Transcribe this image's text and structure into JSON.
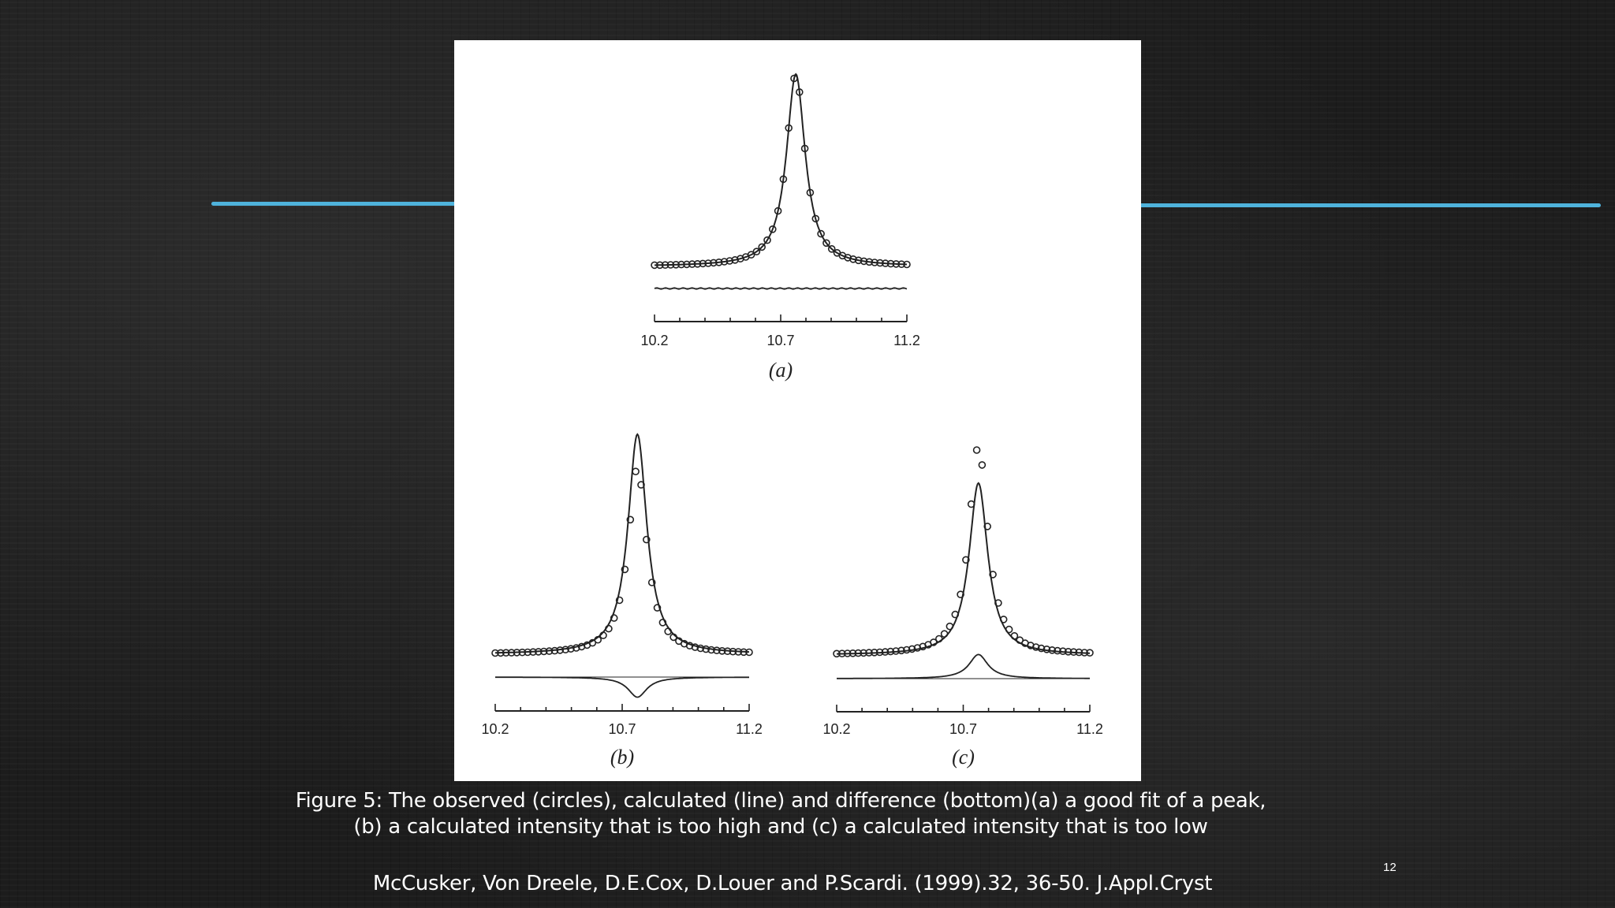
{
  "slide": {
    "accent_color": "#4fb3dc",
    "caption_line1": "Figure 5: The observed (circles), calculated (line) and difference (bottom)(a) a good fit of a peak,",
    "caption_line2": "(b) a calculated intensity that is too high and (c) a calculated intensity that is too low",
    "citation": "McCusker, Von Dreele, D.E.Cox, D.Louer and P.Scardi. (1999).32, 36-50. J.Appl.Cryst",
    "page_number": "12"
  },
  "chart_data": [
    {
      "type": "line",
      "panel_label": "(a)",
      "xlim": [
        10.2,
        11.2
      ],
      "x_ticks": [
        "10.2",
        "10.7",
        "11.2"
      ],
      "peak_center": 10.76,
      "calculated_peak_height": 1.0,
      "observed_peak_height": 1.0,
      "description_series": [
        "observed",
        "calculated",
        "difference"
      ]
    },
    {
      "type": "line",
      "panel_label": "(b)",
      "xlim": [
        10.2,
        11.2
      ],
      "x_ticks": [
        "10.2",
        "10.7",
        "11.2"
      ],
      "peak_center": 10.76,
      "calculated_peak_height": 1.0,
      "observed_peak_height": 0.85
    },
    {
      "type": "line",
      "panel_label": "(c)",
      "xlim": [
        10.2,
        11.2
      ],
      "x_ticks": [
        "10.2",
        "10.7",
        "11.2"
      ],
      "peak_center": 10.76,
      "calculated_peak_height": 0.82,
      "observed_peak_height": 1.0
    }
  ]
}
